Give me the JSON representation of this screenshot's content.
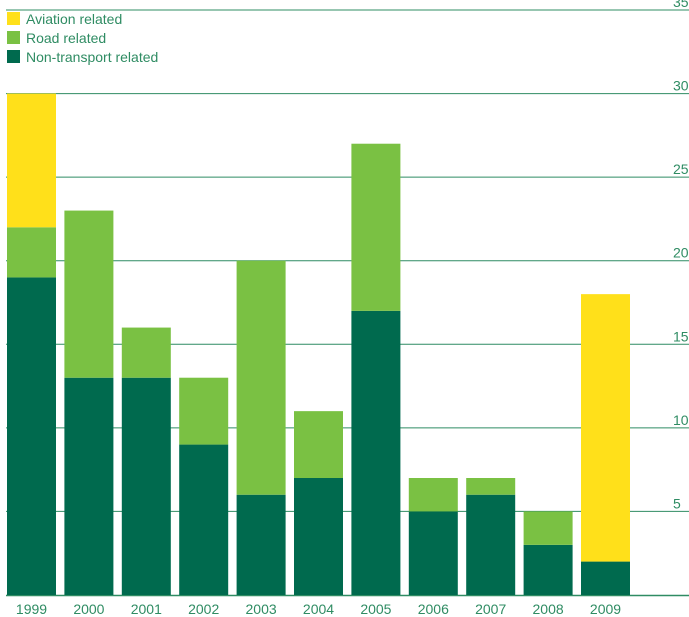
{
  "chart_data": {
    "type": "bar",
    "stacked": true,
    "categories": [
      "1999",
      "2000",
      "2001",
      "2002",
      "2003",
      "2004",
      "2005",
      "2006",
      "2007",
      "2008",
      "2009"
    ],
    "series": [
      {
        "name": "Non-transport related",
        "color": "#006a4e",
        "values": [
          19,
          13,
          13,
          9,
          6,
          7,
          17,
          5,
          6,
          3,
          2
        ]
      },
      {
        "name": "Road related",
        "color": "#7ac143",
        "values": [
          3,
          10,
          3,
          4,
          14,
          4,
          10,
          2,
          1,
          2,
          0
        ]
      },
      {
        "name": "Aviation related",
        "color": "#ffe01a",
        "values": [
          8,
          0,
          0,
          0,
          0,
          0,
          0,
          0,
          0,
          0,
          16
        ]
      }
    ],
    "legend_order": [
      "Aviation related",
      "Road related",
      "Non-transport related"
    ],
    "legend_position": "top-left",
    "ylim": [
      0,
      35
    ],
    "yticks": [
      "5",
      "10",
      "15",
      "20",
      "25",
      "30",
      "35"
    ],
    "y_axis_position": "right",
    "grid": true,
    "gridline_color": "#2f8c63",
    "text_color": "#2f8c63",
    "title": "",
    "xlabel": "",
    "ylabel": ""
  }
}
